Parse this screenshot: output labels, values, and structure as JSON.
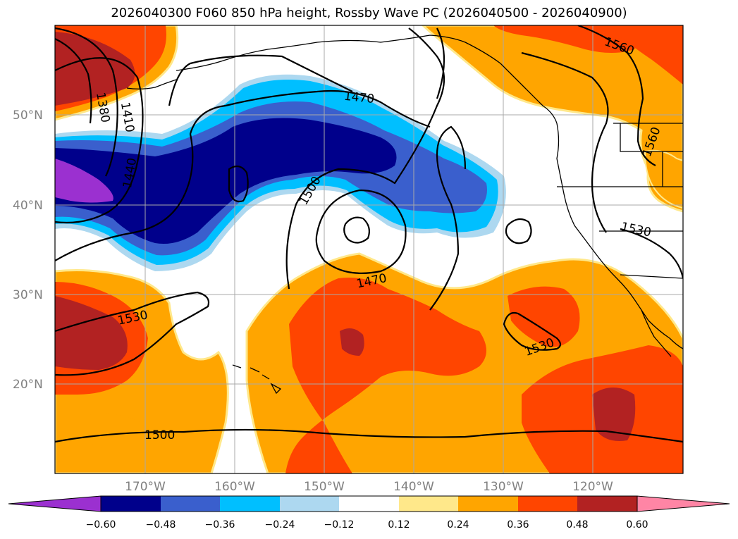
{
  "title": "2026040300 F060 850 hPa height, Rossby Wave PC (2026040500 - 2026040900)",
  "lat_labels": [
    "50°N",
    "40°N",
    "30°N",
    "20°N"
  ],
  "lon_labels": [
    "170°W",
    "160°W",
    "150°W",
    "140°W",
    "130°W",
    "120°W"
  ],
  "contour_labels": [
    "1380",
    "1410",
    "1440",
    "1470",
    "1500",
    "1470",
    "1530",
    "1530",
    "1500",
    "1530",
    "1560",
    "1560"
  ],
  "colorbar": {
    "ticks": [
      "−0.60",
      "−0.48",
      "−0.36",
      "−0.24",
      "−0.12",
      "0.12",
      "0.24",
      "0.36",
      "0.48",
      "0.60"
    ],
    "colors": [
      "#9b30d0",
      "#00008b",
      "#3a5fcd",
      "#00bfff",
      "#add8f0",
      "#ffffff",
      "#ffe88a",
      "#ffa500",
      "#ff4500",
      "#b22222",
      "#ff85a5"
    ]
  },
  "colors": {
    "neg_extreme": "#9b30d0",
    "neg_strong": "#00008b",
    "neg_mid": "#3a5fcd",
    "neg_weak": "#00bfff",
    "neg_faint": "#add8f0",
    "pos_faint": "#ffe88a",
    "pos_weak": "#ffa500",
    "pos_mid": "#ff4500",
    "pos_strong": "#b22222",
    "pos_extreme": "#ff85a5"
  }
}
